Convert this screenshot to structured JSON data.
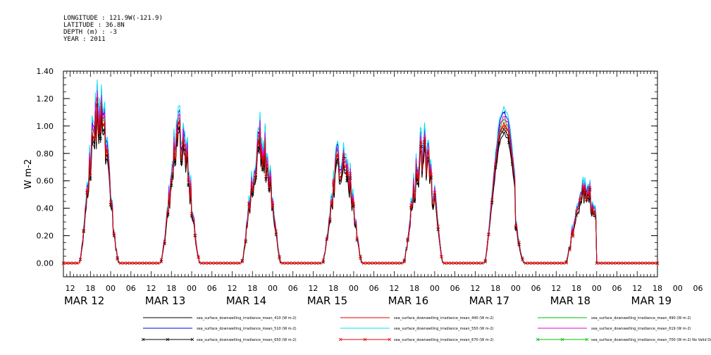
{
  "header": {
    "longitude": "LONGITUDE : 121.9W(-121.9)",
    "latitude": "LATITUDE : 36.8N",
    "depth": "DEPTH (m) : -3",
    "year": "YEAR : 2011"
  },
  "chart_data": {
    "type": "line",
    "ylabel": "W m-2",
    "ylim": [
      -0.1,
      1.4
    ],
    "yticks": [
      "0.00",
      "0.20",
      "0.40",
      "0.60",
      "0.80",
      "1.00",
      "1.20",
      "1.40"
    ],
    "xlim_hours": [
      10,
      186
    ],
    "hour_ticks": [
      "12",
      "18",
      "00",
      "06",
      "12",
      "18",
      "00",
      "06",
      "12",
      "18",
      "00",
      "06",
      "12",
      "18",
      "00",
      "06",
      "12",
      "18",
      "00",
      "06",
      "12",
      "18",
      "00",
      "06",
      "12",
      "18",
      "00",
      "06",
      "12",
      "18",
      "00",
      "06"
    ],
    "day_labels": [
      "MAR 12",
      "MAR 13",
      "MAR 14",
      "MAR 15",
      "MAR 16",
      "MAR 17",
      "MAR 18",
      "MAR 19"
    ],
    "days": [
      {
        "day": "MAR 12",
        "peak": 1.1,
        "noise": 0.15
      },
      {
        "day": "MAR 13",
        "peak": 0.9,
        "noise": 0.2
      },
      {
        "day": "MAR 14",
        "peak": 0.85,
        "noise": 0.2
      },
      {
        "day": "MAR 15",
        "peak": 0.78,
        "noise": 0.18
      },
      {
        "day": "MAR 16",
        "peak": 0.8,
        "noise": 0.2
      },
      {
        "day": "MAR 17",
        "peak": 1.05,
        "noise": 0.02
      },
      {
        "day": "MAR 18",
        "peak": 0.55,
        "noise": 0.18
      }
    ],
    "series": [
      {
        "name": "sea_surface_downwelling_irradiance_mean_410 (W m-2)",
        "color": "#000000",
        "scale": 0.9,
        "marker": "none"
      },
      {
        "name": "sea_surface_downwelling_irradiance_mean_440 (W m-2)",
        "color": "#e00000",
        "scale": 0.96,
        "marker": "none"
      },
      {
        "name": "sea_surface_downwelling_irradiance_mean_490 (W m-2)",
        "color": "#00c000",
        "scale": 1.0,
        "marker": "none"
      },
      {
        "name": "sea_surface_downwelling_irradiance_mean_510 (W m-2)",
        "color": "#0000e0",
        "scale": 1.05,
        "marker": "none"
      },
      {
        "name": "sea_surface_downwelling_irradiance_mean_550 (W m-2)",
        "color": "#00e0f0",
        "scale": 1.08,
        "marker": "none"
      },
      {
        "name": "sea_surface_downwelling_irradiance_mean_619 (W m-2)",
        "color": "#e000e0",
        "scale": 1.02,
        "marker": "none"
      },
      {
        "name": "sea_surface_downwelling_irradiance_mean_650 (W m-2)",
        "color": "#000000",
        "scale": 0.93,
        "marker": "x"
      },
      {
        "name": "sea_surface_downwelling_irradiance_mean_670 (W m-2)",
        "color": "#e00000",
        "scale": 0.97,
        "marker": "x"
      },
      {
        "name": "sea_surface_downwelling_irradiance_mean_700 (W m-2) No Valid Data",
        "color": "#00c000",
        "scale": 0,
        "marker": "x"
      }
    ]
  }
}
